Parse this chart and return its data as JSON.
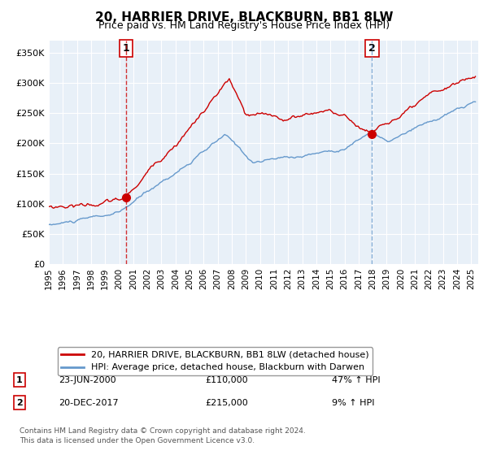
{
  "title": "20, HARRIER DRIVE, BLACKBURN, BB1 8LW",
  "subtitle": "Price paid vs. HM Land Registry's House Price Index (HPI)",
  "hpi_label": "HPI: Average price, detached house, Blackburn with Darwen",
  "property_label": "20, HARRIER DRIVE, BLACKBURN, BB1 8LW (detached house)",
  "red_color": "#cc0000",
  "blue_color": "#6699cc",
  "bg_color": "#e8f0f8",
  "marker1_date_x": 2000.47,
  "marker1_y": 110000,
  "marker2_date_x": 2017.96,
  "marker2_y": 215000,
  "vline1_x": 2000.47,
  "vline2_x": 2017.96,
  "ylim": [
    0,
    370000
  ],
  "xlim_start": 1995.0,
  "xlim_end": 2025.5,
  "ytick_values": [
    0,
    50000,
    100000,
    150000,
    200000,
    250000,
    300000,
    350000
  ],
  "ytick_labels": [
    "£0",
    "£50K",
    "£100K",
    "£150K",
    "£200K",
    "£250K",
    "£300K",
    "£350K"
  ],
  "xtick_years": [
    1995,
    1996,
    1997,
    1998,
    1999,
    2000,
    2001,
    2002,
    2003,
    2004,
    2005,
    2006,
    2007,
    2008,
    2009,
    2010,
    2011,
    2012,
    2013,
    2014,
    2015,
    2016,
    2017,
    2018,
    2019,
    2020,
    2021,
    2022,
    2023,
    2024,
    2025
  ],
  "footer1": "Contains HM Land Registry data © Crown copyright and database right 2024.",
  "footer2": "This data is licensed under the Open Government Licence v3.0.",
  "annotation1_label": "1",
  "annotation1_date": "23-JUN-2000",
  "annotation1_price": "£110,000",
  "annotation1_hpi": "47% ↑ HPI",
  "annotation2_label": "2",
  "annotation2_date": "20-DEC-2017",
  "annotation2_price": "£215,000",
  "annotation2_hpi": "9% ↑ HPI"
}
